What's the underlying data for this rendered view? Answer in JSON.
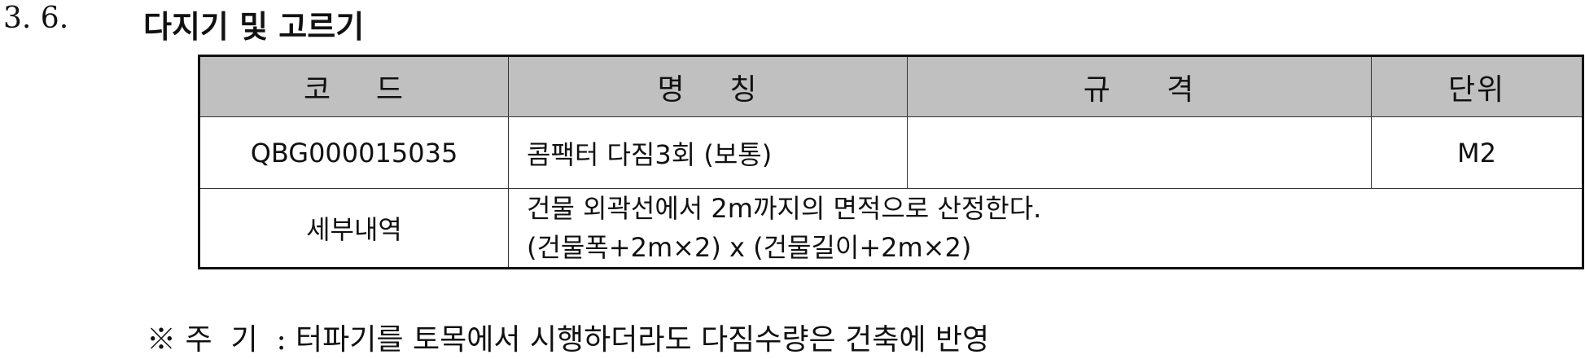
{
  "section": {
    "number": "3. 6.",
    "title": "다지기 및 고르기"
  },
  "table": {
    "headers": {
      "code": "코    드",
      "name": "명    칭",
      "spec": "규     격",
      "unit": "단위"
    },
    "row": {
      "code": "QBG000015035",
      "name": "콤팩터 다짐3회 (보통)",
      "spec": "",
      "unit": "M2"
    },
    "detail": {
      "label": "세부내역",
      "line1": "건물 외곽선에서 2m까지의 면적으로 산정한다.",
      "line2": "(건물폭+2m×2) x (건물길이+2m×2)"
    }
  },
  "note": "※ 주  기  : 터파기를 토목에서 시행하더라도 다짐수량은 건축에 반영"
}
